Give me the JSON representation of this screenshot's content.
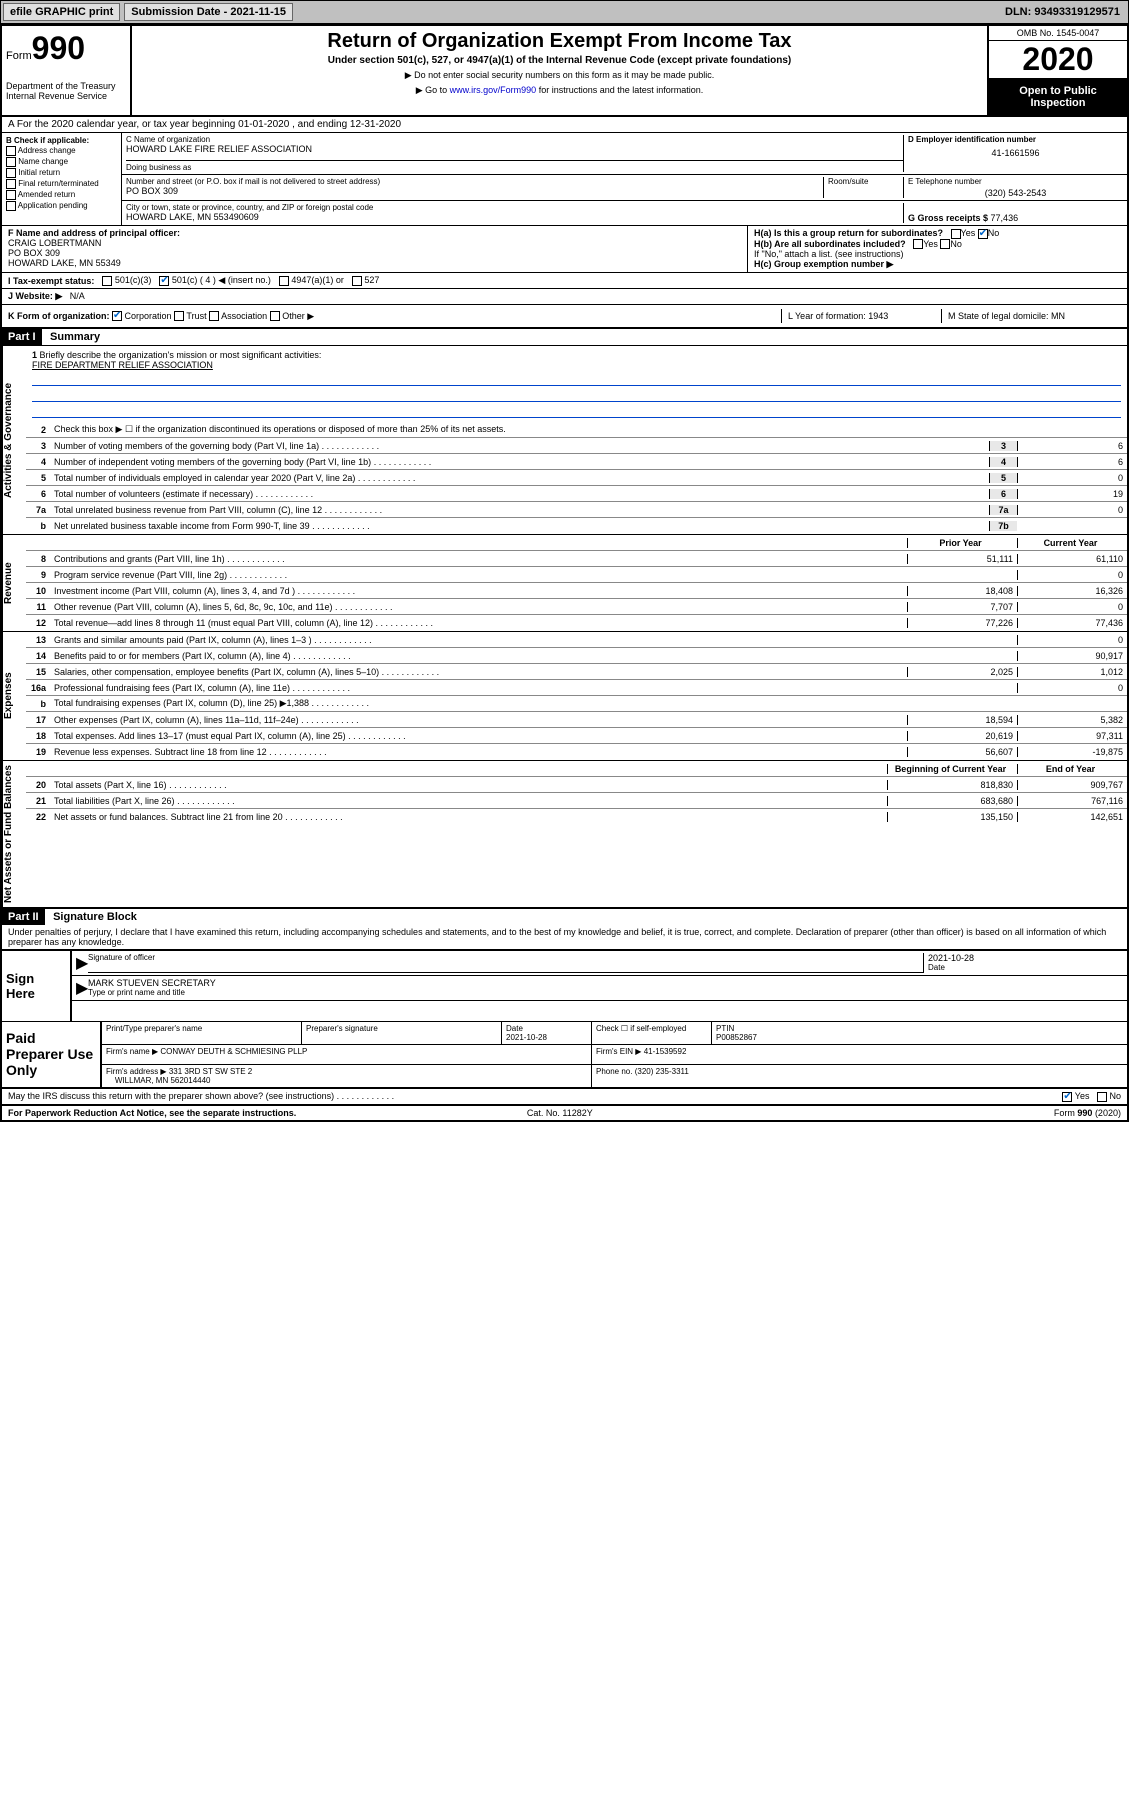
{
  "topbar": {
    "efile": "efile GRAPHIC print",
    "submission_label": "Submission Date - ",
    "submission_date": "2021-11-15",
    "dln_label": "DLN: ",
    "dln": "93493319129571"
  },
  "header": {
    "form_word": "Form",
    "form_num": "990",
    "dept": "Department of the Treasury\nInternal Revenue Service",
    "title": "Return of Organization Exempt From Income Tax",
    "subtitle": "Under section 501(c), 527, or 4947(a)(1) of the Internal Revenue Code (except private foundations)",
    "note1": "▶ Do not enter social security numbers on this form as it may be made public.",
    "note2_pre": "▶ Go to ",
    "note2_link": "www.irs.gov/Form990",
    "note2_post": " for instructions and the latest information.",
    "omb": "OMB No. 1545-0047",
    "year": "2020",
    "open": "Open to Public Inspection"
  },
  "row_a": "A For the 2020 calendar year, or tax year beginning 01-01-2020   , and ending 12-31-2020",
  "col_b": {
    "label": "B Check if applicable:",
    "items": [
      "Address change",
      "Name change",
      "Initial return",
      "Final return/terminated",
      "Amended return",
      "Application pending"
    ]
  },
  "org": {
    "c_label": "C Name of organization",
    "name": "HOWARD LAKE FIRE RELIEF ASSOCIATION",
    "dba_label": "Doing business as",
    "addr_label": "Number and street (or P.O. box if mail is not delivered to street address)",
    "room_label": "Room/suite",
    "addr": "PO BOX 309",
    "city_label": "City or town, state or province, country, and ZIP or foreign postal code",
    "city": "HOWARD LAKE, MN  553490609"
  },
  "col_d": {
    "label": "D Employer identification number",
    "val": "41-1661596"
  },
  "col_e": {
    "label": "E Telephone number",
    "val": "(320) 543-2543"
  },
  "col_g": {
    "label": "G Gross receipts $ ",
    "val": "77,436"
  },
  "col_f": {
    "label": "F  Name and address of principal officer:",
    "name": "CRAIG LOBERTMANN",
    "addr1": "PO BOX 309",
    "addr2": "HOWARD LAKE, MN  55349"
  },
  "col_h": {
    "ha": "H(a)  Is this a group return for subordinates?",
    "hb": "H(b)  Are all subordinates included?",
    "hb_note": "If \"No,\" attach a list. (see instructions)",
    "hc": "H(c)  Group exemption number ▶"
  },
  "row_i": {
    "label": "I   Tax-exempt status:",
    "opts": [
      "501(c)(3)",
      "501(c) ( 4 ) ◀ (insert no.)",
      "4947(a)(1) or",
      "527"
    ]
  },
  "row_j": {
    "label": "J   Website: ▶",
    "val": "N/A"
  },
  "row_k": {
    "label": "K Form of organization:",
    "opts": [
      "Corporation",
      "Trust",
      "Association",
      "Other ▶"
    ]
  },
  "col_l": "L Year of formation: 1943",
  "col_m": "M State of legal domicile: MN",
  "part1": {
    "hdr": "Part I",
    "title": "Summary",
    "sidebar1": "Activities & Governance",
    "sidebar2": "Revenue",
    "sidebar3": "Expenses",
    "sidebar4": "Net Assets or Fund Balances",
    "line1": "Briefly describe the organization's mission or most significant activities:",
    "mission": "FIRE DEPARTMENT RELIEF ASSOCIATION",
    "line2": "Check this box ▶ ☐  if the organization discontinued its operations or disposed of more than 25% of its net assets.",
    "lines_gov": [
      {
        "n": "3",
        "t": "Number of voting members of the governing body (Part VI, line 1a)",
        "c": "3",
        "v": "6"
      },
      {
        "n": "4",
        "t": "Number of independent voting members of the governing body (Part VI, line 1b)",
        "c": "4",
        "v": "6"
      },
      {
        "n": "5",
        "t": "Total number of individuals employed in calendar year 2020 (Part V, line 2a)",
        "c": "5",
        "v": "0"
      },
      {
        "n": "6",
        "t": "Total number of volunteers (estimate if necessary)",
        "c": "6",
        "v": "19"
      },
      {
        "n": "7a",
        "t": "Total unrelated business revenue from Part VIII, column (C), line 12",
        "c": "7a",
        "v": "0"
      },
      {
        "n": "b",
        "t": "Net unrelated business taxable income from Form 990-T, line 39",
        "c": "7b",
        "v": ""
      }
    ],
    "col_hdrs": {
      "prior": "Prior Year",
      "current": "Current Year",
      "begin": "Beginning of Current Year",
      "end": "End of Year"
    },
    "lines_rev": [
      {
        "n": "8",
        "t": "Contributions and grants (Part VIII, line 1h)",
        "p": "51,111",
        "c": "61,110"
      },
      {
        "n": "9",
        "t": "Program service revenue (Part VIII, line 2g)",
        "p": "",
        "c": "0"
      },
      {
        "n": "10",
        "t": "Investment income (Part VIII, column (A), lines 3, 4, and 7d )",
        "p": "18,408",
        "c": "16,326"
      },
      {
        "n": "11",
        "t": "Other revenue (Part VIII, column (A), lines 5, 6d, 8c, 9c, 10c, and 11e)",
        "p": "7,707",
        "c": "0"
      },
      {
        "n": "12",
        "t": "Total revenue—add lines 8 through 11 (must equal Part VIII, column (A), line 12)",
        "p": "77,226",
        "c": "77,436"
      }
    ],
    "lines_exp": [
      {
        "n": "13",
        "t": "Grants and similar amounts paid (Part IX, column (A), lines 1–3 )",
        "p": "",
        "c": "0"
      },
      {
        "n": "14",
        "t": "Benefits paid to or for members (Part IX, column (A), line 4)",
        "p": "",
        "c": "90,917"
      },
      {
        "n": "15",
        "t": "Salaries, other compensation, employee benefits (Part IX, column (A), lines 5–10)",
        "p": "2,025",
        "c": "1,012"
      },
      {
        "n": "16a",
        "t": "Professional fundraising fees (Part IX, column (A), line 11e)",
        "p": "",
        "c": "0"
      },
      {
        "n": "b",
        "t": "Total fundraising expenses (Part IX, column (D), line 25) ▶1,388",
        "p": "",
        "c": "",
        "noval": true
      },
      {
        "n": "17",
        "t": "Other expenses (Part IX, column (A), lines 11a–11d, 11f–24e)",
        "p": "18,594",
        "c": "5,382"
      },
      {
        "n": "18",
        "t": "Total expenses. Add lines 13–17 (must equal Part IX, column (A), line 25)",
        "p": "20,619",
        "c": "97,311"
      },
      {
        "n": "19",
        "t": "Revenue less expenses. Subtract line 18 from line 12",
        "p": "56,607",
        "c": "-19,875"
      }
    ],
    "lines_net": [
      {
        "n": "20",
        "t": "Total assets (Part X, line 16)",
        "p": "818,830",
        "c": "909,767"
      },
      {
        "n": "21",
        "t": "Total liabilities (Part X, line 26)",
        "p": "683,680",
        "c": "767,116"
      },
      {
        "n": "22",
        "t": "Net assets or fund balances. Subtract line 21 from line 20",
        "p": "135,150",
        "c": "142,651"
      }
    ]
  },
  "part2": {
    "hdr": "Part II",
    "title": "Signature Block",
    "perjury": "Under penalties of perjury, I declare that I have examined this return, including accompanying schedules and statements, and to the best of my knowledge and belief, it is true, correct, and complete. Declaration of preparer (other than officer) is based on all information of which preparer has any knowledge.",
    "sign_here": "Sign Here",
    "sig_officer": "Signature of officer",
    "sig_date": "2021-10-28",
    "date_lbl": "Date",
    "officer_name": "MARK STUEVEN SECRETARY",
    "type_name": "Type or print name and title",
    "paid": "Paid Preparer Use Only",
    "prep_name_lbl": "Print/Type preparer's name",
    "prep_sig_lbl": "Preparer's signature",
    "prep_date": "2021-10-28",
    "self_emp": "Check ☐  if self-employed",
    "ptin_lbl": "PTIN",
    "ptin": "P00852867",
    "firm_lbl": "Firm's name     ▶",
    "firm": "CONWAY DEUTH & SCHMIESING PLLP",
    "firm_ein_lbl": "Firm's EIN ▶",
    "firm_ein": "41-1539592",
    "firm_addr_lbl": "Firm's address ▶",
    "firm_addr1": "331 3RD ST SW STE 2",
    "firm_addr2": "WILLMAR, MN  562014440",
    "phone_lbl": "Phone no.",
    "phone": "(320) 235-3311",
    "discuss": "May the IRS discuss this return with the preparer shown above? (see instructions)"
  },
  "footer": {
    "left": "For Paperwork Reduction Act Notice, see the separate instructions.",
    "mid": "Cat. No. 11282Y",
    "right": "Form 990 (2020)",
    "yes": "Yes",
    "no": "No"
  },
  "colors": {
    "link": "#0000cc",
    "rule": "#0044cc",
    "check": "#0066cc"
  }
}
